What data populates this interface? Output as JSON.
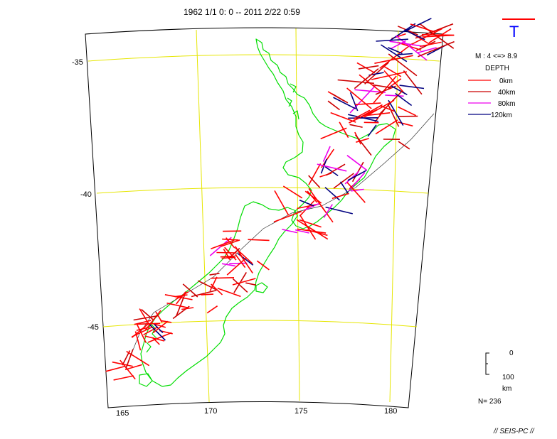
{
  "header": {
    "title": "1962 1/1  0: 0 -- 2011  2/22  0:59"
  },
  "axes": {
    "lat_labels": [
      "-35",
      "-40",
      "-45"
    ],
    "lon_labels": [
      "165",
      "170",
      "175",
      "180"
    ]
  },
  "legend": {
    "stress_symbol": "T",
    "magnitude": "M : 4 <=> 8.9",
    "depth_title": "DEPTH",
    "depths": [
      {
        "label": "0km",
        "color": "#ff0000"
      },
      {
        "label": "40km",
        "color": "#cc0000"
      },
      {
        "label": "80km",
        "color": "#ee00ee"
      },
      {
        "label": "120km",
        "color": "#000080"
      }
    ]
  },
  "depth_scale": {
    "top": "0",
    "bottom": "100",
    "unit": "km"
  },
  "count": "N=  236",
  "footer": "// SEIS-PC //",
  "colors": {
    "coast": "#00dd00",
    "grid": "#e6e600",
    "frame": "#000000",
    "red": "#ff0000",
    "darkred": "#cc0000",
    "magenta": "#ee00ee",
    "navy": "#000080",
    "t_axis_letter": "#0000ff"
  }
}
